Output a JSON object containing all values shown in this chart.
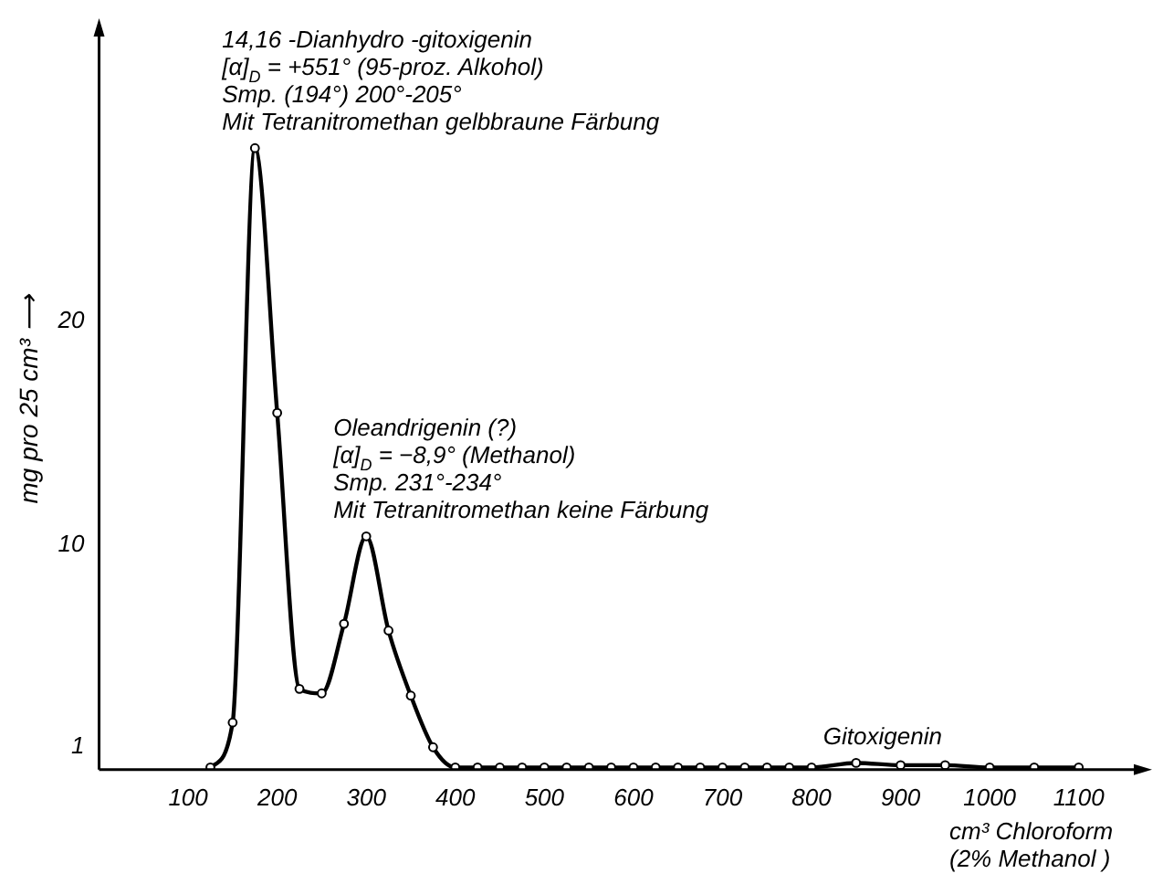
{
  "chart_data": {
    "type": "line",
    "xlabel": "cm³ Chloroform\n(2% Methanol )",
    "ylabel": "mg pro 25 cm³ ⟶",
    "x": [
      125,
      150,
      175,
      200,
      225,
      250,
      275,
      300,
      325,
      350,
      375,
      400,
      425,
      450,
      475,
      500,
      525,
      550,
      575,
      600,
      625,
      650,
      675,
      700,
      725,
      750,
      775,
      800,
      850,
      900,
      950,
      1000,
      1050,
      1100
    ],
    "series": [
      {
        "color": "#000000",
        "values": [
          0.1,
          2.1,
          27.7,
          15.9,
          3.6,
          3.4,
          6.5,
          10.4,
          6.2,
          3.3,
          1.0,
          0.1,
          0.1,
          0.1,
          0.1,
          0.1,
          0.1,
          0.1,
          0.1,
          0.1,
          0.1,
          0.1,
          0.1,
          0.1,
          0.1,
          0.1,
          0.1,
          0.1,
          0.3,
          0.2,
          0.2,
          0.1,
          0.1,
          0.1
        ]
      }
    ],
    "xlim": [
      0,
      1170
    ],
    "xticks": [
      100,
      200,
      300,
      400,
      500,
      600,
      700,
      800,
      900,
      1000,
      1100
    ],
    "ylim": [
      0,
      33
    ],
    "yticks": [
      1,
      10,
      20
    ],
    "grid": false,
    "legend": false,
    "marker": "circle",
    "line_style": "solid",
    "annotations": [
      {
        "text": "14,16 -Dianhydro -gitoxigenin\n[α]$_{D}$ = +551° (95-proz. Alkohol)\nSmp. (194°) 200°-205°\nMit Tetranitromethan gelbbraune Färbung",
        "x": 175,
        "y": 27.7
      },
      {
        "text": "Oleandrigenin (?)\n[α]$_{D}$ = −8,9° (Methanol)\nSmp. 231°-234°\nMit Tetranitromethan keine Färbung",
        "x": 300,
        "y": 10.4
      },
      {
        "text": "Gitoxigenin",
        "x": 850,
        "y": 0.3
      }
    ]
  }
}
